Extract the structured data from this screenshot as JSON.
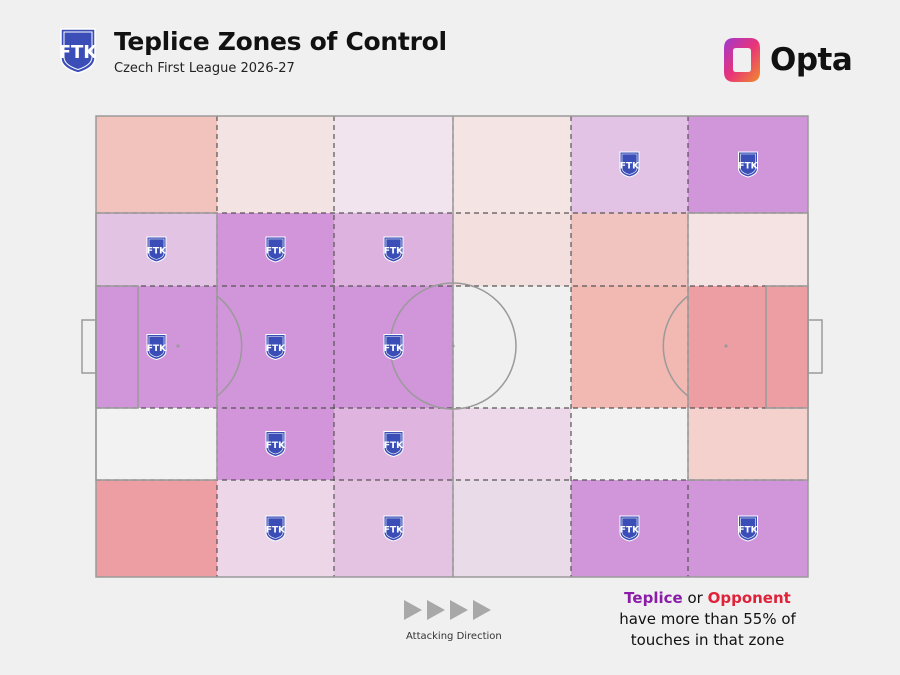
{
  "header": {
    "title": "Teplice Zones of Control",
    "subtitle": "Czech First League 2026-27",
    "crest_icon": "teplice-crest-icon"
  },
  "brand": {
    "name": "Opta",
    "logo_icon": "opta-logo-icon"
  },
  "colors": {
    "background": "#f0f0f0",
    "team": "#8a1ca8",
    "opponent": "#e0213a",
    "pitch_lines": "#9a9a9a",
    "neutral_zone": "#f0f0f0"
  },
  "chart_data": {
    "type": "heatmap",
    "title": "Teplice Zones of Control",
    "subtitle": "Czech First League 2026-27",
    "threshold_percent": 55,
    "attacking_direction": "left-to-right",
    "legend_placement": "bottom-right",
    "columns": [
      "defensive third (outer)",
      "defensive third (inner)",
      "own half",
      "opponent half",
      "attacking third (inner)",
      "attacking third (outer)"
    ],
    "rows": [
      "left wing",
      "left half-space",
      "centre",
      "right half-space",
      "right wing"
    ],
    "zones": [
      [
        {
          "dominant": "opponent",
          "fill": "#f2c2bc"
        },
        {
          "dominant": "neutral",
          "fill": "#f4e3e3"
        },
        {
          "dominant": "neutral",
          "fill": "#f1e4ee"
        },
        {
          "dominant": "neutral",
          "fill": "#f4e4e4"
        },
        {
          "dominant": "teplice",
          "fill": "#e2c3e6"
        },
        {
          "dominant": "teplice",
          "fill": "#d195d9"
        }
      ],
      [
        {
          "dominant": "teplice",
          "fill": "#e3c3e3"
        },
        {
          "dominant": "teplice",
          "fill": "#d395d9"
        },
        {
          "dominant": "teplice",
          "fill": "#deb2de"
        },
        {
          "dominant": "neutral",
          "fill": "#f4dfdf"
        },
        {
          "dominant": "opponent",
          "fill": "#f2c4c0"
        },
        {
          "dominant": "neutral",
          "fill": "#f4e3e2"
        }
      ],
      [
        {
          "dominant": "teplice",
          "fill": "#d196d9"
        },
        {
          "dominant": "teplice",
          "fill": "#d195d9"
        },
        {
          "dominant": "teplice",
          "fill": "#d195d9"
        },
        {
          "dominant": "neutral",
          "fill": "#f0f0f0"
        },
        {
          "dominant": "opponent",
          "fill": "#f2b8b2"
        },
        {
          "dominant": "opponent",
          "fill": "#ec9ea2"
        }
      ],
      [
        {
          "dominant": "neutral",
          "fill": "#f2f2f2"
        },
        {
          "dominant": "teplice",
          "fill": "#d395d9"
        },
        {
          "dominant": "teplice",
          "fill": "#dfb4df"
        },
        {
          "dominant": "neutral",
          "fill": "#ecd8e8"
        },
        {
          "dominant": "neutral",
          "fill": "#f2f2f2"
        },
        {
          "dominant": "opponent",
          "fill": "#f4d1cc"
        }
      ],
      [
        {
          "dominant": "opponent",
          "fill": "#ec9ea2"
        },
        {
          "dominant": "teplice",
          "fill": "#ecd6e8"
        },
        {
          "dominant": "teplice",
          "fill": "#e4c2e2"
        },
        {
          "dominant": "neutral",
          "fill": "#e9dbe8"
        },
        {
          "dominant": "teplice",
          "fill": "#d195d9"
        },
        {
          "dominant": "teplice",
          "fill": "#d195d9"
        }
      ]
    ]
  },
  "attacking_direction_label": "Attacking Direction",
  "legend": {
    "team": "Teplice",
    "connector": "or",
    "opponent": "Opponent",
    "line2": "have more than 55% of",
    "line3": "touches in that zone"
  }
}
